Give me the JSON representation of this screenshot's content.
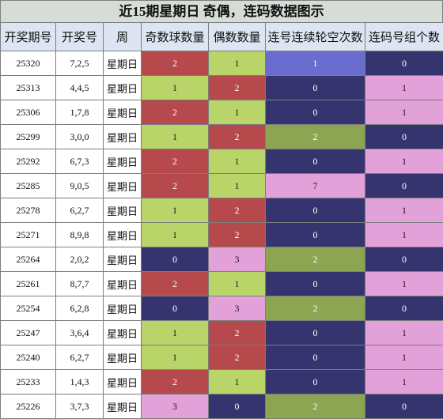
{
  "title": "近15期星期日 奇偶，连码数据图示",
  "columns": [
    "开奖期号",
    "开奖号",
    "周",
    "奇数球数量",
    "偶数数量",
    "连号连续轮空次数",
    "连码号组个数"
  ],
  "colors": {
    "red": "#b5494c",
    "green": "#b9d468",
    "navy": "#35346e",
    "pink": "#e3a1d9",
    "olive": "#8ba553",
    "blue": "#6a6ccf",
    "header_bg": "#dde5f2",
    "title_bg": "#d6ddd6"
  },
  "rows": [
    {
      "issue": "25320",
      "numbers": "7,2,5",
      "week": "星期日",
      "odd": 2,
      "even": 1,
      "consec_miss": 1,
      "consec_groups": 0
    },
    {
      "issue": "25313",
      "numbers": "4,4,5",
      "week": "星期日",
      "odd": 1,
      "even": 2,
      "consec_miss": 0,
      "consec_groups": 1
    },
    {
      "issue": "25306",
      "numbers": "1,7,8",
      "week": "星期日",
      "odd": 2,
      "even": 1,
      "consec_miss": 0,
      "consec_groups": 1
    },
    {
      "issue": "25299",
      "numbers": "3,0,0",
      "week": "星期日",
      "odd": 1,
      "even": 2,
      "consec_miss": 2,
      "consec_groups": 0
    },
    {
      "issue": "25292",
      "numbers": "6,7,3",
      "week": "星期日",
      "odd": 2,
      "even": 1,
      "consec_miss": 0,
      "consec_groups": 1
    },
    {
      "issue": "25285",
      "numbers": "9,0,5",
      "week": "星期日",
      "odd": 2,
      "even": 1,
      "consec_miss": 7,
      "consec_groups": 0
    },
    {
      "issue": "25278",
      "numbers": "6,2,7",
      "week": "星期日",
      "odd": 1,
      "even": 2,
      "consec_miss": 0,
      "consec_groups": 1
    },
    {
      "issue": "25271",
      "numbers": "8,9,8",
      "week": "星期日",
      "odd": 1,
      "even": 2,
      "consec_miss": 0,
      "consec_groups": 1
    },
    {
      "issue": "25264",
      "numbers": "2,0,2",
      "week": "星期日",
      "odd": 0,
      "even": 3,
      "consec_miss": 2,
      "consec_groups": 0
    },
    {
      "issue": "25261",
      "numbers": "8,7,7",
      "week": "星期日",
      "odd": 2,
      "even": 1,
      "consec_miss": 0,
      "consec_groups": 1
    },
    {
      "issue": "25254",
      "numbers": "6,2,8",
      "week": "星期日",
      "odd": 0,
      "even": 3,
      "consec_miss": 2,
      "consec_groups": 0
    },
    {
      "issue": "25247",
      "numbers": "3,6,4",
      "week": "星期日",
      "odd": 1,
      "even": 2,
      "consec_miss": 0,
      "consec_groups": 1
    },
    {
      "issue": "25240",
      "numbers": "6,2,7",
      "week": "星期日",
      "odd": 1,
      "even": 2,
      "consec_miss": 0,
      "consec_groups": 1
    },
    {
      "issue": "25233",
      "numbers": "1,4,3",
      "week": "星期日",
      "odd": 2,
      "even": 1,
      "consec_miss": 0,
      "consec_groups": 1
    },
    {
      "issue": "25226",
      "numbers": "3,7,3",
      "week": "星期日",
      "odd": 3,
      "even": 0,
      "consec_miss": 2,
      "consec_groups": 0
    }
  ]
}
